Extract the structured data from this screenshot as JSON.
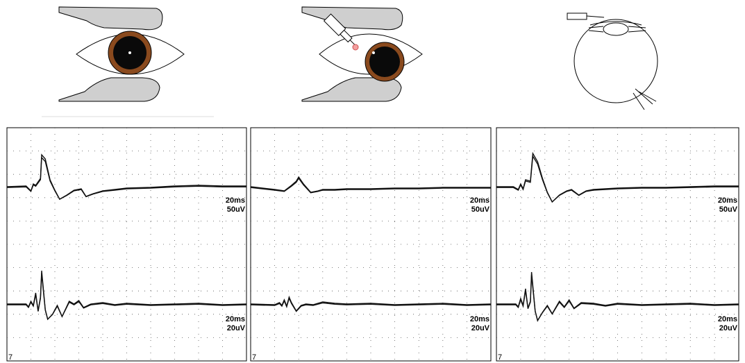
{
  "illustrations": [
    {
      "name": "eye-fixation-center",
      "description_shown": "eye with pupil and fixation light"
    },
    {
      "name": "eye-laser-offset",
      "description_shown": "eye with stimulator probe and shifted pupil"
    },
    {
      "name": "eyeball-cross-section",
      "description_shown": "eyeball cross-section with probe and electrode"
    }
  ],
  "recordings": [
    {
      "panel": 1,
      "traces": [
        {
          "time_label": "20ms",
          "amp_label": "50uV",
          "points": [
            [
              0,
              0
            ],
            [
              0.08,
              1
            ],
            [
              0.1,
              -6
            ],
            [
              0.11,
              4
            ],
            [
              0.12,
              2
            ],
            [
              0.14,
              12
            ],
            [
              0.145,
              46
            ],
            [
              0.16,
              40
            ],
            [
              0.18,
              10
            ],
            [
              0.2,
              -5
            ],
            [
              0.22,
              -18
            ],
            [
              0.25,
              -12
            ],
            [
              0.28,
              -5
            ],
            [
              0.31,
              -3
            ],
            [
              0.33,
              -14
            ],
            [
              0.36,
              -10
            ],
            [
              0.4,
              -6
            ],
            [
              0.45,
              -4
            ],
            [
              0.5,
              -2
            ],
            [
              0.6,
              -1
            ],
            [
              0.7,
              1
            ],
            [
              0.8,
              2
            ],
            [
              0.9,
              1
            ],
            [
              1,
              1
            ]
          ]
        },
        {
          "time_label": "20ms",
          "amp_label": "20uV",
          "points": [
            [
              0,
              0
            ],
            [
              0.08,
              0
            ],
            [
              0.09,
              -4
            ],
            [
              0.1,
              4
            ],
            [
              0.11,
              -2
            ],
            [
              0.12,
              16
            ],
            [
              0.13,
              -10
            ],
            [
              0.14,
              10
            ],
            [
              0.145,
              48
            ],
            [
              0.16,
              -8
            ],
            [
              0.17,
              -22
            ],
            [
              0.19,
              -15
            ],
            [
              0.21,
              -2
            ],
            [
              0.23,
              -18
            ],
            [
              0.26,
              4
            ],
            [
              0.28,
              0
            ],
            [
              0.3,
              5
            ],
            [
              0.32,
              -5
            ],
            [
              0.35,
              0
            ],
            [
              0.4,
              2
            ],
            [
              0.45,
              -1
            ],
            [
              0.5,
              1
            ],
            [
              0.6,
              -1
            ],
            [
              0.7,
              0
            ],
            [
              0.8,
              1
            ],
            [
              0.9,
              -1
            ],
            [
              1,
              0
            ]
          ]
        }
      ]
    },
    {
      "panel": 2,
      "traces": [
        {
          "time_label": "20ms",
          "amp_label": "50uV",
          "points": [
            [
              0,
              0
            ],
            [
              0.1,
              -4
            ],
            [
              0.14,
              -6
            ],
            [
              0.17,
              2
            ],
            [
              0.19,
              8
            ],
            [
              0.2,
              14
            ],
            [
              0.22,
              4
            ],
            [
              0.25,
              -8
            ],
            [
              0.28,
              -6
            ],
            [
              0.3,
              -4
            ],
            [
              0.35,
              -4
            ],
            [
              0.4,
              -3
            ],
            [
              0.5,
              -3
            ],
            [
              0.6,
              -2
            ],
            [
              0.7,
              -2
            ],
            [
              0.8,
              -1
            ],
            [
              0.9,
              -1
            ],
            [
              1,
              -1
            ]
          ]
        },
        {
          "time_label": "20ms",
          "amp_label": "20uV",
          "points": [
            [
              0,
              0
            ],
            [
              0.1,
              -1
            ],
            [
              0.12,
              2
            ],
            [
              0.13,
              -2
            ],
            [
              0.14,
              6
            ],
            [
              0.15,
              -3
            ],
            [
              0.16,
              10
            ],
            [
              0.17,
              2
            ],
            [
              0.19,
              -10
            ],
            [
              0.21,
              -2
            ],
            [
              0.23,
              0
            ],
            [
              0.26,
              -1
            ],
            [
              0.3,
              3
            ],
            [
              0.35,
              1
            ],
            [
              0.4,
              0
            ],
            [
              0.5,
              1
            ],
            [
              0.6,
              -1
            ],
            [
              0.7,
              0
            ],
            [
              0.8,
              1
            ],
            [
              0.9,
              -1
            ],
            [
              1,
              0
            ]
          ]
        }
      ]
    },
    {
      "panel": 3,
      "traces": [
        {
          "time_label": "20ms",
          "amp_label": "50uV",
          "points": [
            [
              0,
              0
            ],
            [
              0.07,
              0
            ],
            [
              0.09,
              -4
            ],
            [
              0.1,
              4
            ],
            [
              0.11,
              -3
            ],
            [
              0.12,
              10
            ],
            [
              0.14,
              8
            ],
            [
              0.15,
              48
            ],
            [
              0.17,
              36
            ],
            [
              0.19,
              12
            ],
            [
              0.21,
              -8
            ],
            [
              0.23,
              -22
            ],
            [
              0.26,
              -12
            ],
            [
              0.29,
              -6
            ],
            [
              0.31,
              -4
            ],
            [
              0.34,
              -12
            ],
            [
              0.37,
              -6
            ],
            [
              0.4,
              -4
            ],
            [
              0.45,
              -3
            ],
            [
              0.5,
              -2
            ],
            [
              0.6,
              -1
            ],
            [
              0.7,
              -1
            ],
            [
              0.8,
              0
            ],
            [
              0.9,
              1
            ],
            [
              1,
              1
            ]
          ]
        },
        {
          "time_label": "20ms",
          "amp_label": "20uV",
          "points": [
            [
              0,
              0
            ],
            [
              0.08,
              0
            ],
            [
              0.09,
              -4
            ],
            [
              0.1,
              8
            ],
            [
              0.11,
              -2
            ],
            [
              0.12,
              22
            ],
            [
              0.13,
              -6
            ],
            [
              0.14,
              4
            ],
            [
              0.145,
              46
            ],
            [
              0.16,
              -10
            ],
            [
              0.17,
              -24
            ],
            [
              0.19,
              -12
            ],
            [
              0.21,
              -2
            ],
            [
              0.23,
              -14
            ],
            [
              0.26,
              4
            ],
            [
              0.28,
              -4
            ],
            [
              0.3,
              6
            ],
            [
              0.32,
              -6
            ],
            [
              0.35,
              2
            ],
            [
              0.4,
              1
            ],
            [
              0.45,
              -2
            ],
            [
              0.5,
              1
            ],
            [
              0.6,
              -1
            ],
            [
              0.7,
              0
            ],
            [
              0.8,
              1
            ],
            [
              0.9,
              -1
            ],
            [
              1,
              0
            ]
          ]
        }
      ]
    }
  ],
  "corner_marks": [
    "7",
    "7",
    "7"
  ]
}
